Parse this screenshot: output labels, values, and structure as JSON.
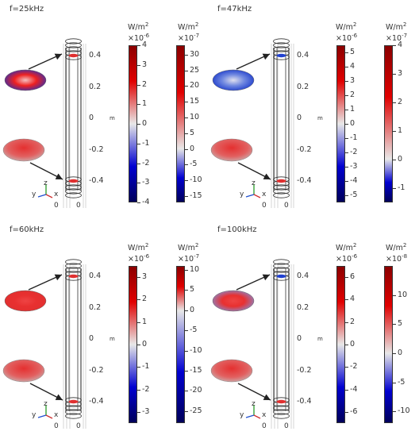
{
  "panels": [
    {
      "title": "f=25kHz",
      "m_unit": "m",
      "y_ticks": [
        "0.4",
        "0.2",
        "0",
        "-0.2",
        "-0.4"
      ],
      "axis_labels": {
        "y": "y",
        "z": "z",
        "x": "x"
      },
      "origin_label": "0",
      "colorbar1": {
        "unit_line1": "W/m",
        "unit_sup1": "2",
        "unit_line2": "×10",
        "unit_sup2": "-6",
        "ticks": [
          "4",
          "3",
          "2",
          "1",
          "0",
          "-1",
          "-2",
          "-3",
          "-4"
        ],
        "range": [
          -4,
          4
        ]
      },
      "colorbar2": {
        "unit_line1": "W/m",
        "unit_sup1": "2",
        "unit_line2": "×10",
        "unit_sup2": "-7",
        "ticks": [
          "30",
          "25",
          "20",
          "15",
          "10",
          "5",
          "0",
          "-5",
          "-10",
          "-15"
        ],
        "range": [
          -17,
          33
        ]
      }
    },
    {
      "title": "f=47kHz",
      "m_unit": "m",
      "y_ticks": [
        "0.4",
        "0.2",
        "0",
        "-0.2",
        "-0.4"
      ],
      "axis_labels": {
        "y": "y",
        "z": "z",
        "x": "x"
      },
      "origin_label": "0",
      "colorbar1": {
        "unit_line1": "W/m",
        "unit_sup1": "2",
        "unit_line2": "×10",
        "unit_sup2": "-6",
        "ticks": [
          "5",
          "4",
          "3",
          "2",
          "1",
          "0",
          "-1",
          "-2",
          "-3",
          "-4",
          "-5"
        ],
        "range": [
          -5.5,
          5.5
        ]
      },
      "colorbar2": {
        "unit_line1": "W/m",
        "unit_sup1": "2",
        "unit_line2": "×10",
        "unit_sup2": "-7",
        "ticks": [
          "4",
          "3",
          "2",
          "1",
          "0",
          "-1"
        ],
        "range": [
          -1.5,
          4
        ]
      }
    },
    {
      "title": "f=60kHz",
      "m_unit": "m",
      "y_ticks": [
        "0.4",
        "0.2",
        "0",
        "-0.2",
        "-0.4"
      ],
      "axis_labels": {
        "y": "y",
        "z": "z",
        "x": "x"
      },
      "origin_label": "0",
      "colorbar1": {
        "unit_line1": "W/m",
        "unit_sup1": "2",
        "unit_line2": "×10",
        "unit_sup2": "-6",
        "ticks": [
          "3",
          "2",
          "1",
          "0",
          "-1",
          "-2",
          "-3"
        ],
        "range": [
          -3.5,
          3.5
        ]
      },
      "colorbar2": {
        "unit_line1": "W/m",
        "unit_sup1": "2",
        "unit_line2": "×10",
        "unit_sup2": "-7",
        "ticks": [
          "10",
          "5",
          "0",
          "-5",
          "-10",
          "-15",
          "-20",
          "-25"
        ],
        "range": [
          -28,
          11
        ]
      }
    },
    {
      "title": "f=100kHz",
      "m_unit": "m",
      "y_ticks": [
        "0.4",
        "0.2",
        "0",
        "-0.2",
        "-0.4"
      ],
      "axis_labels": {
        "y": "y",
        "z": "z",
        "x": "x"
      },
      "origin_label": "0",
      "colorbar1": {
        "unit_line1": "W/m",
        "unit_sup1": "2",
        "unit_line2": "×10",
        "unit_sup2": "-6",
        "ticks": [
          "6",
          "4",
          "2",
          "0",
          "-2",
          "-4",
          "-6"
        ],
        "range": [
          -7,
          7
        ]
      },
      "colorbar2": {
        "unit_line1": "W/m",
        "unit_sup1": "2",
        "unit_line2": "×10",
        "unit_sup2": "-8",
        "ticks": [
          "10",
          "5",
          "0",
          "-5",
          "-10"
        ],
        "range": [
          -12,
          15
        ]
      }
    }
  ],
  "colors": {
    "high": "#8b0000",
    "mid": "#e8e8e8",
    "low": "#00005a",
    "red": "#e00000",
    "blue": "#0000d0"
  }
}
